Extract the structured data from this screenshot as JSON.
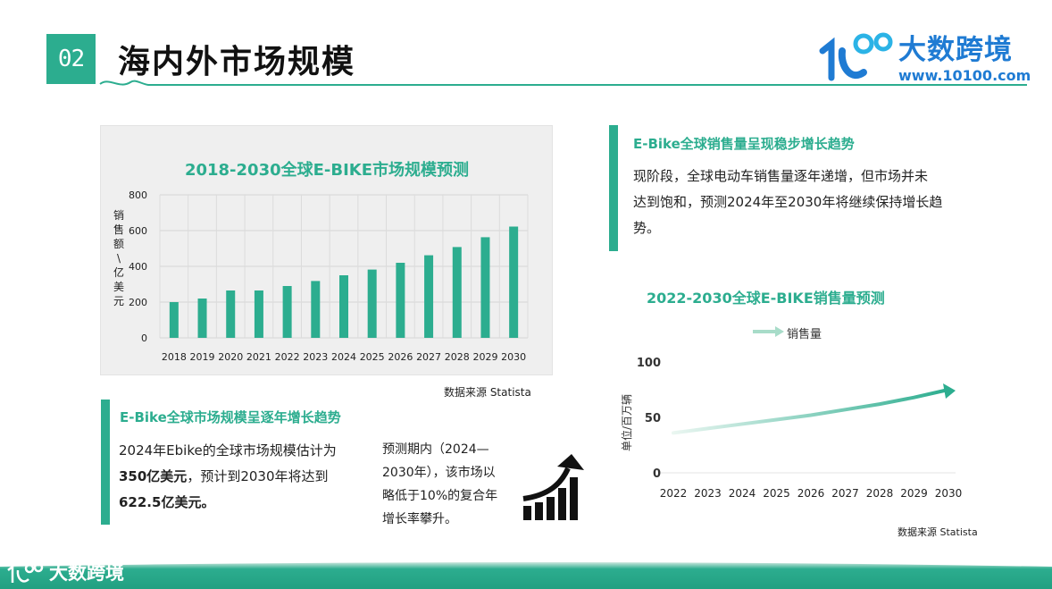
{
  "header": {
    "section_number": "02",
    "title": "海内外市场规模"
  },
  "logo": {
    "name": "大数跨境",
    "url": "www.10100.com"
  },
  "colors": {
    "accent": "#2cad8f",
    "brand_blue": "#1f7bd3",
    "chart_bg": "#efefef"
  },
  "market_chart": {
    "source": "数据来源 Statista"
  },
  "market_callout": {
    "title": "E-Bike全球市场规模呈逐年增长趋势",
    "text_line1": "2024年Ebike的全球市场规模估计为",
    "text_bold1": "350亿美元",
    "text_line2": "，预计到2030年将达到",
    "text_bold2": "622.5亿美元。"
  },
  "forecast_note": {
    "lines": [
      "预测期内（2024—",
      "2030年），该市场以",
      "略低于10%的复合年",
      "增长率攀升。"
    ]
  },
  "sales_callout": {
    "title": "E-Bike全球销售量呈现稳步增长趋势",
    "lines": [
      "现阶段，全球电动车销售量逐年递增，但市场并未",
      "达到饱和，预测2024年至2030年将继续保持增长趋",
      "势。"
    ]
  },
  "sales_chart": {
    "source": "数据来源  Statista"
  },
  "footer": {
    "brand": "大数跨境"
  },
  "icons": [
    "growth-chart-icon",
    "brand-logo-icon",
    "green-arrow-icon"
  ],
  "chart_data": [
    {
      "type": "bar",
      "title": "2018-2030全球E-BIKE市场规模预测",
      "ylabel": "销售额\\亿美元",
      "categories": [
        "2018",
        "2019",
        "2020",
        "2021",
        "2022",
        "2023",
        "2024",
        "2025",
        "2026",
        "2027",
        "2028",
        "2029",
        "2030"
      ],
      "values": [
        200,
        220,
        265,
        265,
        290,
        318,
        350,
        382,
        420,
        462,
        508,
        563,
        622.5
      ],
      "ylim": [
        0,
        800
      ],
      "yticks": [
        "0",
        "200",
        "400",
        "600",
        "800"
      ],
      "grid": true
    },
    {
      "type": "line",
      "title": "2022-2030全球E-BIKE销售量预测",
      "ylabel": "单位/百万辆",
      "x": [
        "2022",
        "2023",
        "2024",
        "2025",
        "2026",
        "2027",
        "2028",
        "2029",
        "2030"
      ],
      "series": [
        {
          "name": "销售量",
          "values": [
            36,
            40,
            44,
            48,
            52,
            57,
            62,
            68,
            75
          ]
        }
      ],
      "ylim": [
        0,
        100
      ],
      "yticks": [
        "0",
        "50",
        "100"
      ],
      "legend": "top-center",
      "grid": false
    }
  ]
}
